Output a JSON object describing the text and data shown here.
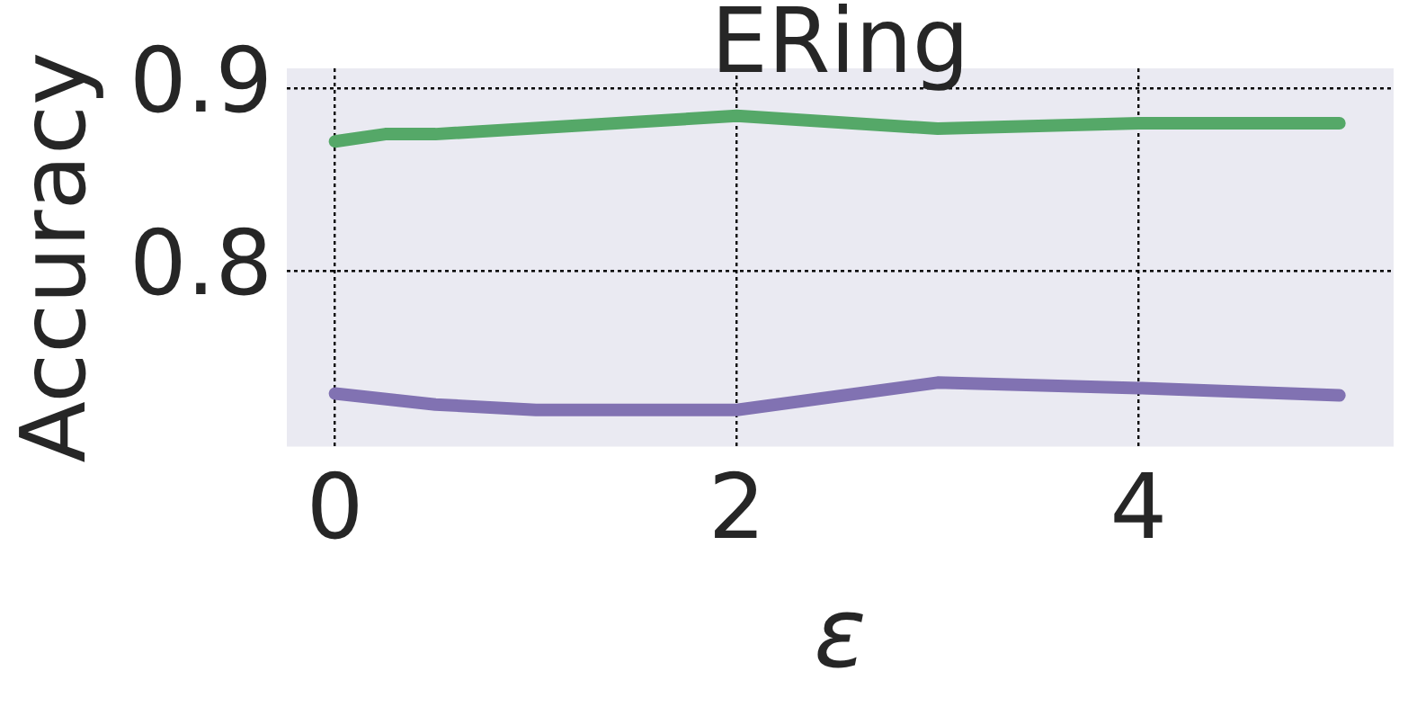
{
  "chart_data": {
    "type": "line",
    "title": "ERing",
    "xlabel": "ε",
    "ylabel": "Accuracy",
    "xlim": [
      -0.24,
      5.27
    ],
    "xticks": [
      0,
      2,
      4
    ],
    "ylim": [
      0.704,
      0.911
    ],
    "yticks": [
      0.8,
      0.9
    ],
    "grid": true,
    "marker": "none",
    "series": [
      {
        "color": "#55a868",
        "x": [
          0,
          0.25,
          0.5,
          2,
          3,
          4,
          5
        ],
        "values": [
          0.871,
          0.875,
          0.875,
          0.885,
          0.878,
          0.881,
          0.881
        ]
      },
      {
        "color": "#8172b2",
        "x": [
          0,
          0.5,
          1,
          2,
          3,
          4,
          5
        ],
        "values": [
          0.733,
          0.727,
          0.724,
          0.724,
          0.739,
          0.736,
          0.732
        ]
      }
    ]
  }
}
